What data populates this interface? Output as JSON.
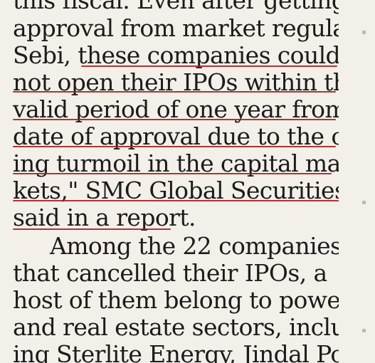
{
  "article": {
    "lines": [
      "this fiscal. Even after getting",
      "approval from market regulator",
      "Sebi, these companies could",
      "not open their IPOs within the",
      "valid period of one year from the",
      "date of approval due to the ongo-",
      "ing turmoil in the capital mar-",
      "kets,\" SMC Global Securities",
      "said in a report.",
      "Among the 22 companies",
      "that cancelled their IPOs, a",
      "host of them belong to power",
      "and real estate sectors, includ-",
      "ing Sterlite Energy, Jindal Pow-"
    ]
  },
  "colors": {
    "paper": "#f3f0ea",
    "ink": "#1c1c1c",
    "underline": "#a61f1f"
  }
}
